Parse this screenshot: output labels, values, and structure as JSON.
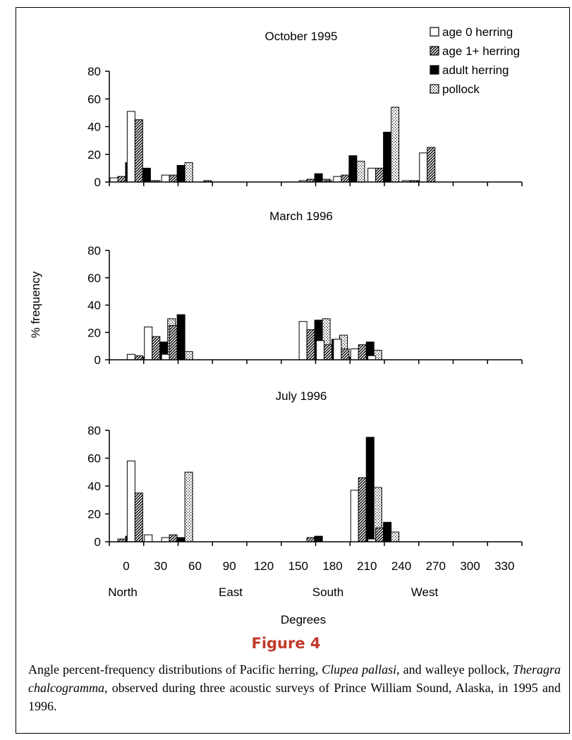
{
  "figure_label": "Figure 4",
  "caption": {
    "p1": "Angle percent-frequency distributions of Pacific herring, ",
    "s1": "Clupea pallasi",
    "p2": ", and walleye pollock, ",
    "s2": "Theragra chalcogramma",
    "p3": ", observed during three acoustic surveys of Prince William Sound, Alaska, in 1995 and 1996."
  },
  "legend": [
    {
      "label": "age 0 herring",
      "pattern": "white"
    },
    {
      "label": "age 1+ herring",
      "pattern": "hatch"
    },
    {
      "label": "adult herring",
      "pattern": "black"
    },
    {
      "label": "pollock",
      "pattern": "dots"
    }
  ],
  "colors": {
    "ink": "#000000",
    "figure_label": "#c0392b"
  },
  "chart_data": [
    {
      "type": "bar",
      "title": "October 1995",
      "ylim": [
        0,
        80
      ],
      "yticks": [
        0,
        20,
        40,
        60,
        80
      ],
      "categories": [
        0,
        15,
        30,
        45,
        60,
        75,
        90,
        105,
        120,
        135,
        150,
        165,
        180,
        195,
        210,
        225,
        240,
        255,
        270,
        285,
        300,
        315,
        330,
        345
      ],
      "series": [
        {
          "name": "age 0 herring",
          "values": [
            3,
            51,
            0,
            5,
            0,
            0,
            0,
            0,
            0,
            0,
            0,
            1,
            0,
            4,
            0,
            10,
            0,
            1,
            21,
            0,
            0,
            0,
            0,
            0
          ]
        },
        {
          "name": "age 1+ herring",
          "values": [
            4,
            45,
            1,
            5,
            0,
            1,
            0,
            0,
            0,
            0,
            0,
            2,
            1,
            5,
            0,
            10,
            0,
            1,
            25,
            0,
            0,
            0,
            0,
            0
          ]
        },
        {
          "name": "adult herring",
          "values": [
            14,
            10,
            0,
            12,
            0,
            0,
            0,
            0,
            0,
            0,
            0,
            6,
            0,
            19,
            0,
            36,
            0,
            1,
            0,
            0,
            0,
            0,
            0,
            0
          ]
        },
        {
          "name": "pollock",
          "values": [
            0,
            1,
            0,
            14,
            0,
            0,
            0,
            0,
            0,
            0,
            0,
            2,
            3,
            15,
            0,
            54,
            0,
            8,
            0,
            0,
            0,
            0,
            0,
            0
          ]
        }
      ]
    },
    {
      "type": "bar",
      "title": "March 1996",
      "ylim": [
        0,
        80
      ],
      "yticks": [
        0,
        20,
        40,
        60,
        80
      ],
      "ylabel": "% frequency",
      "categories": [
        0,
        15,
        30,
        45,
        60,
        75,
        90,
        105,
        120,
        135,
        150,
        165,
        180,
        195,
        210,
        225,
        240,
        255,
        270,
        285,
        300,
        315,
        330,
        345
      ],
      "series": [
        {
          "name": "age 0 herring",
          "values": [
            0,
            4,
            24,
            4,
            0,
            0,
            0,
            0,
            0,
            0,
            0,
            28,
            14,
            15,
            8,
            3,
            0,
            0,
            0,
            0,
            0,
            0,
            0,
            0
          ]
        },
        {
          "name": "age 1+ herring",
          "values": [
            0,
            3,
            17,
            25,
            0,
            0,
            0,
            0,
            0,
            0,
            0,
            22,
            11,
            8,
            11,
            0,
            0,
            0,
            0,
            0,
            0,
            0,
            0,
            0
          ]
        },
        {
          "name": "adult herring",
          "values": [
            0,
            2,
            13,
            33,
            0,
            0,
            0,
            0,
            0,
            0,
            0,
            29,
            15,
            2,
            13,
            0,
            0,
            0,
            0,
            0,
            0,
            0,
            0,
            0
          ]
        },
        {
          "name": "pollock",
          "values": [
            0,
            5,
            30,
            6,
            0,
            0,
            0,
            0,
            0,
            0,
            0,
            30,
            18,
            8,
            7,
            0,
            0,
            0,
            0,
            0,
            0,
            0,
            0,
            0
          ]
        }
      ]
    },
    {
      "type": "bar",
      "title": "July 1996",
      "ylim": [
        0,
        80
      ],
      "yticks": [
        0,
        20,
        40,
        60,
        80
      ],
      "xlabel": "Degrees",
      "xticks": [
        "0",
        "30",
        "60",
        "90",
        "120",
        "150",
        "180",
        "210",
        "240",
        "270",
        "300",
        "330"
      ],
      "direction_labels": [
        "North",
        "East",
        "South",
        "West"
      ],
      "categories": [
        0,
        15,
        30,
        45,
        60,
        75,
        90,
        105,
        120,
        135,
        150,
        165,
        180,
        195,
        210,
        225,
        240,
        255,
        270,
        285,
        300,
        315,
        330,
        345
      ],
      "series": [
        {
          "name": "age 0 herring",
          "values": [
            0,
            58,
            5,
            3,
            0,
            0,
            0,
            0,
            0,
            0,
            0,
            0,
            0,
            0,
            37,
            2,
            0,
            0,
            0,
            0,
            0,
            0,
            0,
            0
          ]
        },
        {
          "name": "age 1+ herring",
          "values": [
            2,
            35,
            0,
            5,
            0,
            0,
            0,
            0,
            0,
            0,
            0,
            3,
            0,
            0,
            46,
            10,
            0,
            0,
            0,
            0,
            0,
            0,
            0,
            0
          ]
        },
        {
          "name": "adult herring",
          "values": [
            4,
            0,
            0,
            3,
            0,
            0,
            0,
            0,
            0,
            0,
            0,
            4,
            0,
            0,
            75,
            14,
            0,
            0,
            0,
            0,
            0,
            0,
            0,
            0
          ]
        },
        {
          "name": "pollock",
          "values": [
            0,
            0,
            0,
            50,
            0,
            0,
            0,
            0,
            0,
            0,
            0,
            0,
            0,
            0,
            39,
            7,
            0,
            0,
            0,
            0,
            0,
            0,
            0,
            0
          ]
        }
      ]
    }
  ]
}
